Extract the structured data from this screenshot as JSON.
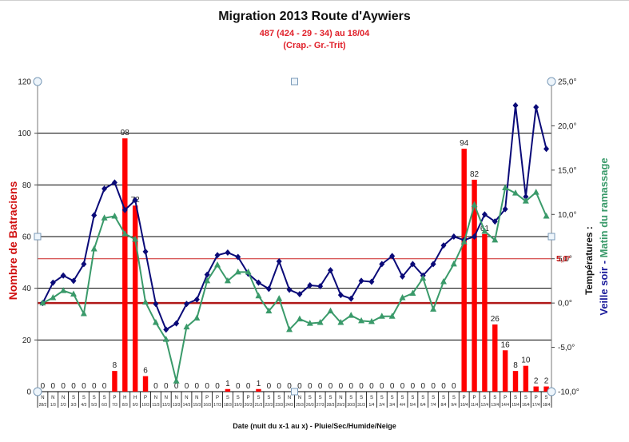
{
  "chart_data": {
    "type": "bar+line",
    "title": "Migration 2013 Route d'Aywiers",
    "subtitle": [
      "487 (424 - 29 - 34) au 18/04",
      "(Crap.- Gr.-Trit)"
    ],
    "xlabel": "Date (nuit du x-1 au x) - Pluie/Sec/Humide/Neige",
    "ylabel": "Nombre de Batraciens",
    "y2label_line1": "Températures :",
    "y2label_line2_part1": "Veille soir - ",
    "y2label_line2_part2": "Matin du ramassage",
    "ylim": [
      0,
      120
    ],
    "y_ticks": [
      0,
      20,
      40,
      60,
      80,
      100,
      120
    ],
    "y2lim": [
      -10,
      25
    ],
    "y2_ticks": [
      "-10,0°",
      "-5,0°",
      "0,0°",
      "5,0°",
      "10,0°",
      "15,0°",
      "20,0°",
      "25,0°"
    ],
    "reference_lines_temp": [
      0.0,
      5.0
    ],
    "reference_label": "5,0°",
    "grid": true,
    "categories": [
      "28/2",
      "1/3",
      "2/3",
      "3/3",
      "4/3",
      "5/3",
      "6/3",
      "7/3",
      "8/3",
      "9/3",
      "10/3",
      "11/3",
      "12/3",
      "13/3",
      "14/3",
      "15/3",
      "16/3",
      "17/3",
      "18/3",
      "19/3",
      "20/3",
      "21/3",
      "22/3",
      "23/3",
      "24/3",
      "25/3",
      "26/3",
      "27/3",
      "28/3",
      "29/3",
      "30/3",
      "31/3",
      "1/4",
      "2/4",
      "3/4",
      "4/4",
      "5/4",
      "6/4",
      "7/4",
      "8/4",
      "9/4",
      "10/4",
      "11/4",
      "12/4",
      "13/4",
      "14/4",
      "15/4",
      "16/4",
      "17/4",
      "18/4"
    ],
    "weather": [
      "N",
      "N",
      "N",
      "S",
      "S",
      "S",
      "S",
      "P",
      "H",
      "H",
      "P",
      "N",
      "N",
      "N",
      "N",
      "N",
      "P",
      "P",
      "S",
      "S",
      "P",
      "S",
      "S",
      "S",
      "N",
      "N",
      "S",
      "S",
      "S",
      "N",
      "S",
      "S",
      "S",
      "S",
      "S",
      "S",
      "S",
      "S",
      "S",
      "S",
      "S",
      "P",
      "P",
      "S",
      "S",
      "P",
      "S",
      "S",
      "P",
      "S"
    ],
    "series": [
      {
        "name": "Nombre de Batraciens",
        "type": "bar",
        "color": "#ff0000",
        "axis": "left",
        "values": [
          0,
          0,
          0,
          0,
          0,
          0,
          0,
          8,
          98,
          72,
          6,
          0,
          0,
          0,
          0,
          0,
          0,
          0,
          1,
          0,
          0,
          1,
          0,
          0,
          0,
          0,
          0,
          0,
          0,
          0,
          0,
          0,
          0,
          0,
          0,
          0,
          0,
          0,
          0,
          0,
          0,
          94,
          82,
          61,
          26,
          16,
          8,
          10,
          2,
          2
        ]
      },
      {
        "name": "Veille soir",
        "type": "line",
        "marker": "diamond",
        "color": "#0a0a78",
        "axis": "right",
        "values": [
          0.0,
          2.3,
          3.1,
          2.5,
          4.4,
          9.9,
          12.9,
          13.6,
          10.5,
          11.6,
          5.8,
          -0.1,
          -3.0,
          -2.3,
          -0.1,
          0.4,
          3.2,
          5.4,
          5.7,
          5.2,
          3.3,
          2.3,
          1.6,
          4.7,
          1.5,
          1.0,
          2.0,
          1.9,
          3.7,
          0.9,
          0.5,
          2.5,
          2.4,
          4.4,
          5.3,
          3.0,
          4.4,
          3.1,
          4.4,
          6.5,
          7.5,
          7.1,
          7.5,
          10.0,
          9.2,
          10.6,
          22.3,
          12.0,
          22.1,
          17.4
        ]
      },
      {
        "name": "Matin du ramassage",
        "type": "line",
        "marker": "triangle",
        "color": "#3a9a6a",
        "axis": "right",
        "values": [
          0.0,
          0.6,
          1.4,
          1.0,
          -1.2,
          6.1,
          9.6,
          9.8,
          7.8,
          7.2,
          0.1,
          -2.2,
          -4.1,
          -8.8,
          -2.7,
          -1.7,
          2.5,
          4.3,
          2.5,
          3.5,
          3.5,
          0.8,
          -0.9,
          0.5,
          -3.0,
          -1.8,
          -2.3,
          -2.2,
          -0.9,
          -2.2,
          -1.4,
          -2.0,
          -2.1,
          -1.5,
          -1.5,
          0.6,
          1.1,
          2.8,
          -0.7,
          2.4,
          4.4,
          6.9,
          11.1,
          8.1,
          7.1,
          13.0,
          12.4,
          11.5,
          12.5,
          9.8
        ]
      }
    ]
  }
}
